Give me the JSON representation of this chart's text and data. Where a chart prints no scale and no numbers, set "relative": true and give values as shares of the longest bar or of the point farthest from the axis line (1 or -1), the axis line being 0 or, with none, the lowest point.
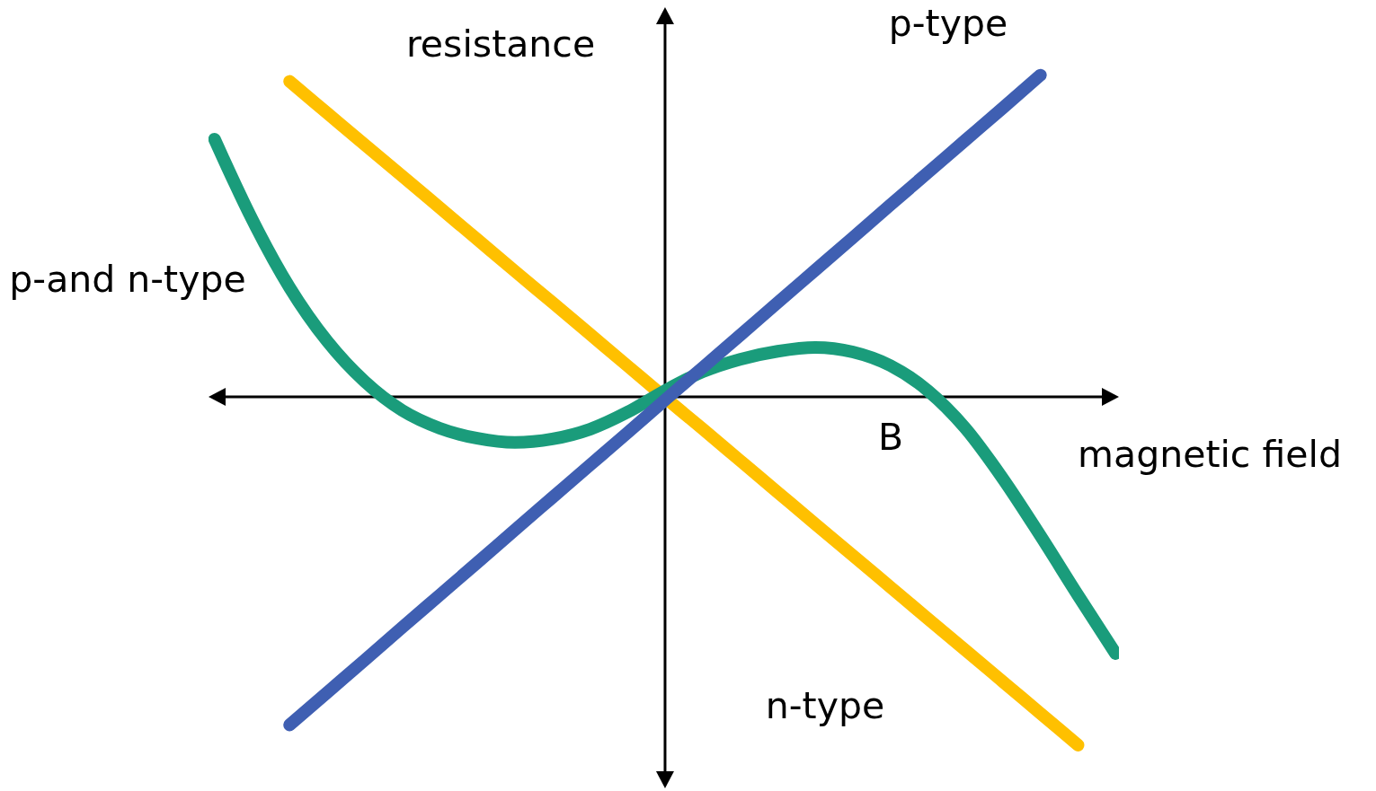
{
  "chart_data": {
    "type": "line",
    "xlabel": "magnetic field",
    "ylabel": "resistance",
    "annotations": [
      "B"
    ],
    "relative": true,
    "marker": "none",
    "line_style": "solid",
    "categories": [
      null,
      null,
      null,
      null,
      null,
      null,
      null,
      null,
      null,
      null,
      null,
      null,
      null,
      null,
      null,
      null,
      null,
      null,
      null,
      null,
      null,
      null,
      null,
      null,
      null
    ],
    "series": [
      {
        "name": "n-type",
        "color": "#ffc000",
        "values": [
          null,
          null,
          0.906,
          0.815,
          0.724,
          0.634,
          0.543,
          0.452,
          0.361,
          0.271,
          0.18,
          0.089,
          -0.002,
          -0.092,
          -0.183,
          -0.274,
          -0.365,
          -0.455,
          -0.546,
          -0.637,
          -0.727,
          -0.818,
          -0.909,
          -1,
          null
        ]
      },
      {
        "name": "p-and n-type",
        "color": "#1a9c7b",
        "values": [
          0.74,
          0.51,
          0.314,
          0.16,
          0.044,
          -0.039,
          -0.09,
          -0.119,
          -0.131,
          -0.121,
          -0.093,
          -0.044,
          0.018,
          0.072,
          0.108,
          0.131,
          0.142,
          0.129,
          0.09,
          0.018,
          -0.09,
          -0.235,
          -0.399,
          -0.57,
          -0.737
        ]
      },
      {
        "name": "p-type",
        "color": "#3f5fb2",
        "values": [
          null,
          null,
          -0.942,
          -0.849,
          -0.756,
          -0.662,
          -0.569,
          -0.476,
          -0.382,
          -0.289,
          -0.196,
          -0.103,
          -0.009,
          0.084,
          0.177,
          0.271,
          0.364,
          0.457,
          0.551,
          0.644,
          0.737,
          0.83,
          0.924,
          null,
          null
        ]
      }
    ]
  }
}
